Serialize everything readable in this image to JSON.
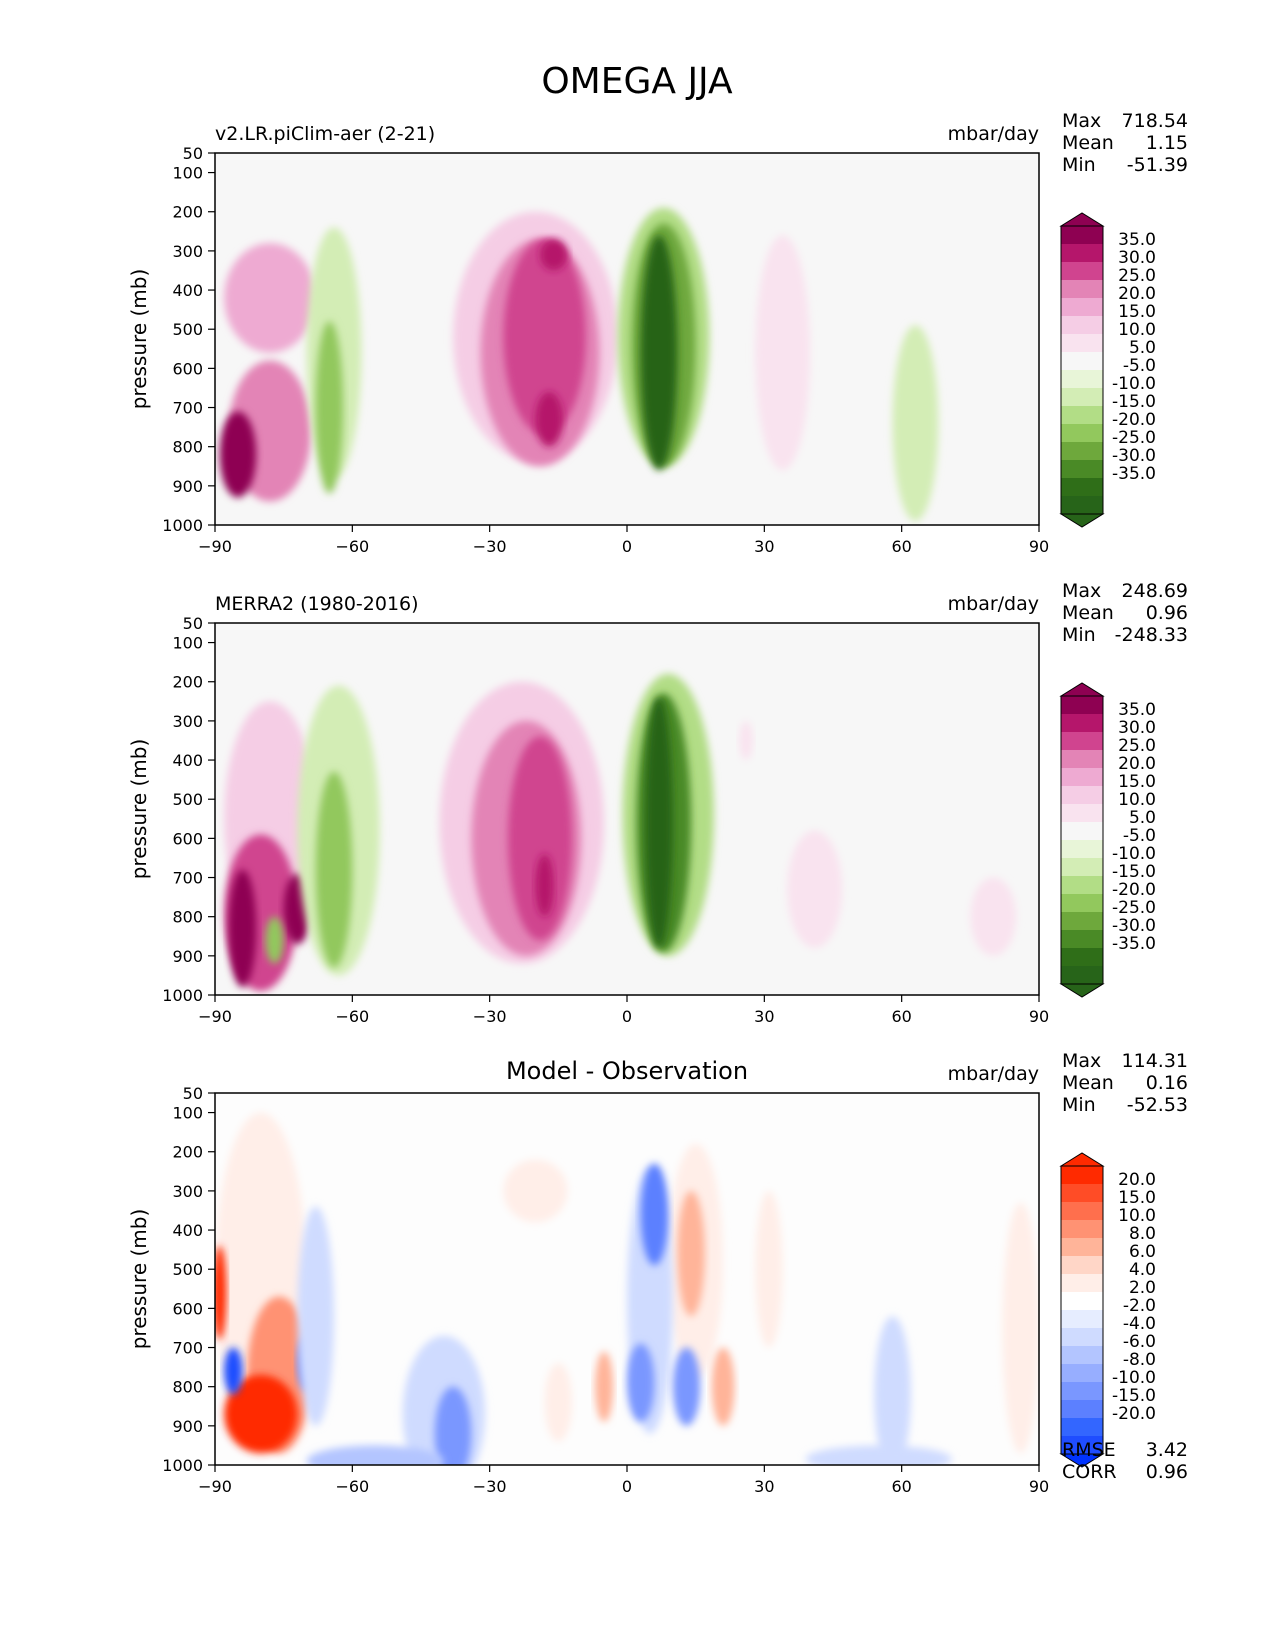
{
  "figure": {
    "title": "OMEGA JJA"
  },
  "chart_data": [
    {
      "type": "heatmap",
      "title": "",
      "left_label": "v2.LR.piClim-aer (2-21)",
      "units": "mbar/day",
      "ylabel": "pressure (mb)",
      "xlabel": "",
      "xlim": [
        -90,
        90
      ],
      "ylim": [
        1000,
        50
      ],
      "xticks": [
        "−90",
        "−60",
        "−30",
        "0",
        "30",
        "60",
        "90"
      ],
      "xtick_values": [
        -90,
        -60,
        -30,
        0,
        30,
        60,
        90
      ],
      "yticks": [
        "50",
        "100",
        "200",
        "300",
        "400",
        "500",
        "600",
        "700",
        "800",
        "900",
        "1000"
      ],
      "ytick_values": [
        50,
        100,
        200,
        300,
        400,
        500,
        600,
        700,
        800,
        900,
        1000
      ],
      "stats": [
        {
          "label": "Max",
          "value": "718.54"
        },
        {
          "label": "Mean",
          "value": "1.15"
        },
        {
          "label": "Min",
          "value": "-51.39"
        }
      ],
      "colorbar": {
        "labels": [
          "35.0",
          "30.0",
          "25.0",
          "20.0",
          "15.0",
          "10.0",
          "5.0",
          "-5.0",
          "-10.0",
          "-15.0",
          "-20.0",
          "-25.0",
          "-30.0",
          "-35.0"
        ],
        "colors": [
          "#8e0152",
          "#b5166b",
          "#d0448f",
          "#e384b6",
          "#eeaad2",
          "#f5cde5",
          "#f9e3ef",
          "#f7f7f7",
          "#e8f5d8",
          "#d3edb5",
          "#b2dd86",
          "#92c85d",
          "#6ea83c",
          "#4a8a26",
          "#2f6e18",
          "#276419"
        ],
        "extend_top": "#8e0152",
        "extend_bottom": "#276419"
      },
      "background": "#f7f7f7",
      "features": [
        {
          "x": -78,
          "p": 420,
          "rx": 10,
          "rp": 140,
          "level": 15
        },
        {
          "x": -78,
          "p": 760,
          "rx": 9,
          "rp": 180,
          "level": 20
        },
        {
          "x": -85,
          "p": 820,
          "rx": 4,
          "rp": 110,
          "level": 40
        },
        {
          "x": -64,
          "p": 560,
          "rx": 6,
          "rp": 320,
          "level": -5
        },
        {
          "x": -65,
          "p": 700,
          "rx": 3,
          "rp": 220,
          "level": -15
        },
        {
          "x": -20,
          "p": 520,
          "rx": 18,
          "rp": 320,
          "level": 10
        },
        {
          "x": -19,
          "p": 560,
          "rx": 13,
          "rp": 290,
          "level": 20
        },
        {
          "x": -18,
          "p": 520,
          "rx": 9,
          "rp": 250,
          "level": 25
        },
        {
          "x": -16,
          "p": 310,
          "rx": 3,
          "rp": 40,
          "level": 30
        },
        {
          "x": -17,
          "p": 730,
          "rx": 3,
          "rp": 70,
          "level": 30
        },
        {
          "x": 8,
          "p": 520,
          "rx": 10,
          "rp": 330,
          "level": -10
        },
        {
          "x": 8,
          "p": 540,
          "rx": 7,
          "rp": 310,
          "level": -20
        },
        {
          "x": 7,
          "p": 560,
          "rx": 4,
          "rp": 300,
          "level": -35
        },
        {
          "x": 34,
          "p": 560,
          "rx": 6,
          "rp": 300,
          "level": 5
        },
        {
          "x": 63,
          "p": 740,
          "rx": 5,
          "rp": 250,
          "level": -5
        }
      ]
    },
    {
      "type": "heatmap",
      "title": "",
      "left_label": "MERRA2 (1980-2016)",
      "units": "mbar/day",
      "ylabel": "pressure (mb)",
      "xlabel": "",
      "xlim": [
        -90,
        90
      ],
      "ylim": [
        1000,
        50
      ],
      "xticks": [
        "−90",
        "−60",
        "−30",
        "0",
        "30",
        "60",
        "90"
      ],
      "xtick_values": [
        -90,
        -60,
        -30,
        0,
        30,
        60,
        90
      ],
      "yticks": [
        "50",
        "100",
        "200",
        "300",
        "400",
        "500",
        "600",
        "700",
        "800",
        "900",
        "1000"
      ],
      "ytick_values": [
        50,
        100,
        200,
        300,
        400,
        500,
        600,
        700,
        800,
        900,
        1000
      ],
      "stats": [
        {
          "label": "Max",
          "value": "248.69"
        },
        {
          "label": "Mean",
          "value": "0.96"
        },
        {
          "label": "Min",
          "value": "-248.33"
        }
      ],
      "colorbar": {
        "labels": [
          "35.0",
          "30.0",
          "25.0",
          "20.0",
          "15.0",
          "10.0",
          "5.0",
          "-5.0",
          "-10.0",
          "-15.0",
          "-20.0",
          "-25.0",
          "-30.0",
          "-35.0"
        ],
        "colors": [
          "#8e0152",
          "#b5166b",
          "#d0448f",
          "#e384b6",
          "#eeaad2",
          "#f5cde5",
          "#f9e3ef",
          "#f7f7f7",
          "#e8f5d8",
          "#d3edb5",
          "#b2dd86",
          "#92c85d",
          "#6ea83c",
          "#4a8a26",
          "#2f6e18",
          "#276419"
        ],
        "extend_top": "#8e0152",
        "extend_bottom": "#276419"
      },
      "background": "#f7f7f7",
      "features": [
        {
          "x": -78,
          "p": 550,
          "rx": 10,
          "rp": 300,
          "level": 10
        },
        {
          "x": -80,
          "p": 790,
          "rx": 8,
          "rp": 200,
          "level": 25
        },
        {
          "x": -84,
          "p": 830,
          "rx": 3,
          "rp": 150,
          "level": 40
        },
        {
          "x": -72,
          "p": 780,
          "rx": 3,
          "rp": 90,
          "level": 35
        },
        {
          "x": -77,
          "p": 860,
          "rx": 2,
          "rp": 60,
          "level": -15
        },
        {
          "x": -63,
          "p": 580,
          "rx": 9,
          "rp": 370,
          "level": -5
        },
        {
          "x": -64,
          "p": 680,
          "rx": 4,
          "rp": 250,
          "level": -15
        },
        {
          "x": -23,
          "p": 560,
          "rx": 18,
          "rp": 360,
          "level": 10
        },
        {
          "x": -22,
          "p": 600,
          "rx": 12,
          "rp": 300,
          "level": 20
        },
        {
          "x": -19,
          "p": 600,
          "rx": 7,
          "rp": 260,
          "level": 25
        },
        {
          "x": -18,
          "p": 720,
          "rx": 2,
          "rp": 80,
          "level": 30
        },
        {
          "x": 9,
          "p": 540,
          "rx": 10,
          "rp": 360,
          "level": -10
        },
        {
          "x": 8,
          "p": 560,
          "rx": 6,
          "rp": 330,
          "level": -25
        },
        {
          "x": 7,
          "p": 560,
          "rx": 3,
          "rp": 320,
          "level": -35
        },
        {
          "x": 26,
          "p": 350,
          "rx": 1.5,
          "rp": 50,
          "level": 5
        },
        {
          "x": 41,
          "p": 730,
          "rx": 6,
          "rp": 150,
          "level": 5
        },
        {
          "x": 80,
          "p": 800,
          "rx": 5,
          "rp": 100,
          "level": 5
        }
      ]
    },
    {
      "type": "heatmap",
      "title": "Model - Observation",
      "left_label": "",
      "units": "mbar/day",
      "ylabel": "pressure (mb)",
      "xlabel": "",
      "xlim": [
        -90,
        90
      ],
      "ylim": [
        1000,
        50
      ],
      "xticks": [
        "−90",
        "−60",
        "−30",
        "0",
        "30",
        "60",
        "90"
      ],
      "xtick_values": [
        -90,
        -60,
        -30,
        0,
        30,
        60,
        90
      ],
      "yticks": [
        "50",
        "100",
        "200",
        "300",
        "400",
        "500",
        "600",
        "700",
        "800",
        "900",
        "1000"
      ],
      "ytick_values": [
        50,
        100,
        200,
        300,
        400,
        500,
        600,
        700,
        800,
        900,
        1000
      ],
      "stats": [
        {
          "label": "Max",
          "value": "114.31"
        },
        {
          "label": "Mean",
          "value": "0.16"
        },
        {
          "label": "Min",
          "value": "-52.53"
        }
      ],
      "extra_stats": [
        {
          "label": "RMSE",
          "value": "3.42"
        },
        {
          "label": "CORR",
          "value": "0.96"
        }
      ],
      "colorbar": {
        "labels": [
          "20.0",
          "15.0",
          "10.0",
          "8.0",
          "6.0",
          "4.0",
          "2.0",
          "-2.0",
          "-4.0",
          "-6.0",
          "-8.0",
          "-10.0",
          "-15.0",
          "-20.0"
        ],
        "colors": [
          "#ff2a00",
          "#ff4c26",
          "#ff6f4d",
          "#ff9273",
          "#ffb499",
          "#ffd6c7",
          "#ffeee8",
          "#ffffff",
          "#e6edff",
          "#cfdbff",
          "#b3c5ff",
          "#97aeff",
          "#7a97ff",
          "#5c80ff",
          "#3366ff",
          "#1f4dff"
        ],
        "extend_top": "#ff2a00",
        "extend_bottom": "#0033ff"
      },
      "background": "#fdfdfd",
      "features": [
        {
          "x": -20,
          "p": 300,
          "rx": 7,
          "rp": 80,
          "level": 3
        },
        {
          "x": 15,
          "p": 480,
          "rx": 6,
          "rp": 300,
          "level": 3
        },
        {
          "x": 14,
          "p": 460,
          "rx": 3,
          "rp": 160,
          "level": 7
        },
        {
          "x": 5,
          "p": 580,
          "rx": 5,
          "rp": 340,
          "level": -3
        },
        {
          "x": 6,
          "p": 360,
          "rx": 3,
          "rp": 130,
          "level": -12
        },
        {
          "x": 3,
          "p": 790,
          "rx": 3,
          "rp": 100,
          "level": -8
        },
        {
          "x": 13,
          "p": 800,
          "rx": 3,
          "rp": 100,
          "level": -9
        },
        {
          "x": 21,
          "p": 800,
          "rx": 2.5,
          "rp": 100,
          "level": 7
        },
        {
          "x": -5,
          "p": 800,
          "rx": 2,
          "rp": 90,
          "level": 7
        },
        {
          "x": 31,
          "p": 500,
          "rx": 3,
          "rp": 200,
          "level": 3
        },
        {
          "x": -40,
          "p": 870,
          "rx": 9,
          "rp": 200,
          "level": -3
        },
        {
          "x": -38,
          "p": 920,
          "rx": 4,
          "rp": 120,
          "level": -8
        },
        {
          "x": -55,
          "p": 990,
          "rx": 15,
          "rp": 40,
          "level": -4
        },
        {
          "x": 58,
          "p": 820,
          "rx": 4,
          "rp": 200,
          "level": -3
        },
        {
          "x": 55,
          "p": 985,
          "rx": 16,
          "rp": 35,
          "level": -3
        },
        {
          "x": -15,
          "p": 840,
          "rx": 3,
          "rp": 100,
          "level": 3
        },
        {
          "x": 86,
          "p": 650,
          "rx": 4,
          "rp": 320,
          "level": 3
        },
        {
          "x": -80,
          "p": 520,
          "rx": 10,
          "rp": 420,
          "level": 3
        },
        {
          "x": -76,
          "p": 770,
          "rx": 7,
          "rp": 200,
          "level": 9
        },
        {
          "x": -80,
          "p": 870,
          "rx": 8,
          "rp": 100,
          "level": 25
        },
        {
          "x": -86,
          "p": 760,
          "rx": 2,
          "rp": 60,
          "level": -20
        },
        {
          "x": -70,
          "p": 740,
          "rx": 2,
          "rp": 70,
          "level": -10
        },
        {
          "x": -68,
          "p": 620,
          "rx": 4,
          "rp": 280,
          "level": -3
        },
        {
          "x": -89,
          "p": 560,
          "rx": 1.5,
          "rp": 120,
          "level": 25
        }
      ]
    }
  ]
}
